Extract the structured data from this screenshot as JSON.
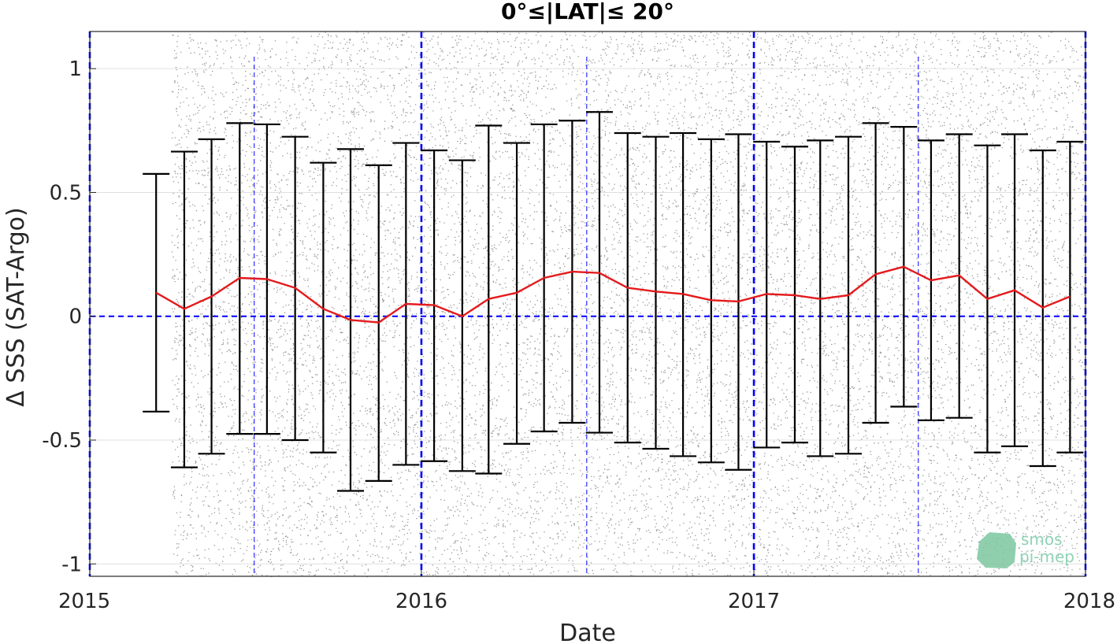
{
  "chart_data": {
    "type": "scatter",
    "title": "0°≤|LAT|≤ 20°",
    "xlabel": "Date",
    "ylabel": "Δ SSS (SAT-Argo)",
    "xlim": [
      "2015-01-01",
      "2018-01-01"
    ],
    "ylim": [
      -1.05,
      1.15
    ],
    "xticks": [
      "2015-01-01",
      "2016-01-01",
      "2017-01-01",
      "2018-01-01"
    ],
    "xtick_labels": [
      "2015",
      "2016",
      "2017",
      "2018"
    ],
    "yticks": [
      -1,
      -0.5,
      0,
      0.5,
      1
    ],
    "ytick_labels": [
      "-1",
      "-0.5",
      "0",
      "0.5",
      "1"
    ],
    "grid": true,
    "scatter": {
      "x_range": [
        "2015-04-01",
        "2018-01-01"
      ],
      "y_range": [
        -1.05,
        1.15
      ],
      "color": "#7f7f7f"
    },
    "series": [
      {
        "type": "line",
        "color": "#e41a1c",
        "x": [
          "2015-03-15",
          "2015-04-15",
          "2015-05-15",
          "2015-06-15",
          "2015-07-15",
          "2015-08-15",
          "2015-09-15",
          "2015-10-15",
          "2015-11-15",
          "2015-12-15",
          "2016-01-15",
          "2016-02-15",
          "2016-03-15",
          "2016-04-15",
          "2016-05-15",
          "2016-06-15",
          "2016-07-15",
          "2016-08-15",
          "2016-09-15",
          "2016-10-15",
          "2016-11-15",
          "2016-12-15",
          "2017-01-15",
          "2017-02-15",
          "2017-03-15",
          "2017-04-15",
          "2017-05-15",
          "2017-06-15",
          "2017-07-15",
          "2017-08-15",
          "2017-09-15",
          "2017-10-15",
          "2017-11-15",
          "2017-12-15"
        ],
        "y": [
          0.095,
          0.03,
          0.08,
          0.155,
          0.15,
          0.115,
          0.03,
          -0.015,
          -0.025,
          0.05,
          0.045,
          0.0,
          0.07,
          0.095,
          0.155,
          0.18,
          0.175,
          0.115,
          0.1,
          0.09,
          0.065,
          0.06,
          0.09,
          0.085,
          0.07,
          0.085,
          0.17,
          0.2,
          0.145,
          0.165,
          0.07,
          0.105,
          0.035,
          0.08
        ]
      },
      {
        "type": "errorbar",
        "color": "#000000",
        "x": [
          "2015-03-15",
          "2015-04-15",
          "2015-05-15",
          "2015-06-15",
          "2015-07-15",
          "2015-08-15",
          "2015-09-15",
          "2015-10-15",
          "2015-11-15",
          "2015-12-15",
          "2016-01-15",
          "2016-02-15",
          "2016-03-15",
          "2016-04-15",
          "2016-05-15",
          "2016-06-15",
          "2016-07-15",
          "2016-08-15",
          "2016-09-15",
          "2016-10-15",
          "2016-11-15",
          "2016-12-15",
          "2017-01-15",
          "2017-02-15",
          "2017-03-15",
          "2017-04-15",
          "2017-05-15",
          "2017-06-15",
          "2017-07-15",
          "2017-08-15",
          "2017-09-15",
          "2017-10-15",
          "2017-11-15",
          "2017-12-15"
        ],
        "upper": [
          0.575,
          0.665,
          0.715,
          0.78,
          0.775,
          0.725,
          0.62,
          0.675,
          0.61,
          0.7,
          0.67,
          0.63,
          0.77,
          0.7,
          0.775,
          0.79,
          0.825,
          0.74,
          0.725,
          0.74,
          0.715,
          0.735,
          0.705,
          0.685,
          0.71,
          0.725,
          0.78,
          0.765,
          0.71,
          0.735,
          0.69,
          0.735,
          0.67,
          0.705
        ],
        "lower": [
          -0.385,
          -0.61,
          -0.555,
          -0.475,
          -0.475,
          -0.5,
          -0.55,
          -0.705,
          -0.665,
          -0.6,
          -0.585,
          -0.625,
          -0.635,
          -0.515,
          -0.465,
          -0.43,
          -0.47,
          -0.51,
          -0.535,
          -0.565,
          -0.59,
          -0.62,
          -0.53,
          -0.51,
          -0.565,
          -0.555,
          -0.43,
          -0.365,
          -0.42,
          -0.41,
          -0.55,
          -0.525,
          -0.605,
          -0.55
        ]
      }
    ],
    "reference_lines": {
      "zero_line": {
        "y": 0,
        "color": "#0000ff",
        "style": "dashed"
      },
      "year_lines": {
        "x": [
          "2015-01-01",
          "2016-01-01",
          "2017-01-01",
          "2018-01-01"
        ],
        "color": "#0000ff",
        "style": "dashed"
      },
      "midyear_lines": {
        "x": [
          "2015-07-01",
          "2016-07-01",
          "2017-07-01"
        ],
        "color": "#0000ff",
        "style": "dashed"
      }
    }
  },
  "logo": {
    "line1": "smos",
    "line2": "pi-mep"
  }
}
